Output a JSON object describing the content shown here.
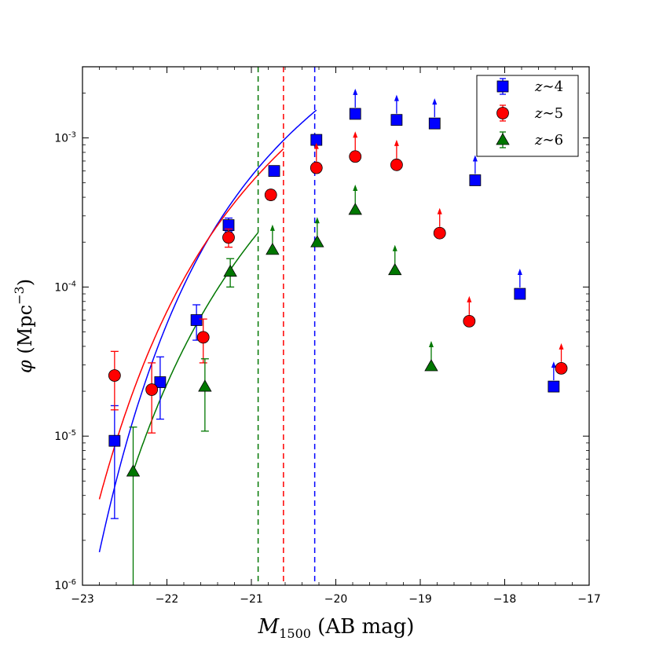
{
  "chart_data": {
    "type": "scatter",
    "xlabel_main": "M",
    "xlabel_sub": "1500",
    "xlabel_rest": " (AB mag)",
    "ylabel_sym": "φ",
    "ylabel_text": "(Mpc",
    "ylabel_exp": "−3",
    "ylabel_close": ")",
    "xlim": [
      -23,
      -17
    ],
    "ylim": [
      1e-06,
      0.003
    ],
    "yscale": "log",
    "x_ticks": [
      -23,
      -22,
      -21,
      -20,
      -19,
      -18,
      -17
    ],
    "x_tick_labels": [
      "−23",
      "−22",
      "−21",
      "−20",
      "−19",
      "−18",
      "−17"
    ],
    "y_ticks": [
      1e-06,
      1e-05,
      0.0001,
      0.001
    ],
    "y_tick_labels": [
      "10-6",
      "10-5",
      "10-4",
      "10-3"
    ],
    "legend_position": "top-right",
    "series": [
      {
        "name": "z ∼4",
        "legend_z": "z",
        "legend_tilde": "∼",
        "legend_num": "4",
        "color": "#0000ff",
        "marker": "square",
        "points": [
          {
            "x": -22.62,
            "y": 9.3e-06,
            "lo": 2.8e-06,
            "hi": 1.6e-05
          },
          {
            "x": -22.08,
            "y": 2.3e-05,
            "lo": 1.3e-05,
            "hi": 3.4e-05
          },
          {
            "x": -21.65,
            "y": 6e-05,
            "lo": 4.4e-05,
            "hi": 7.6e-05
          },
          {
            "x": -21.27,
            "y": 0.00026,
            "lo": 0.000235,
            "hi": 0.00029
          },
          {
            "x": -20.73,
            "y": 0.0006,
            "lo": 0.00057,
            "hi": 0.00063
          },
          {
            "x": -20.23,
            "y": 0.00097,
            "lo": 0.00094,
            "hi": 0.001
          }
        ],
        "lower_limits": [
          {
            "x": -19.77,
            "y": 0.00145
          },
          {
            "x": -19.28,
            "y": 0.00132
          },
          {
            "x": -18.83,
            "y": 0.00125
          },
          {
            "x": -18.35,
            "y": 0.00052
          },
          {
            "x": -17.82,
            "y": 9e-05
          },
          {
            "x": -17.42,
            "y": 2.15e-05
          }
        ],
        "fit": {
          "phi_star": 0.00197,
          "m_star": -20.88,
          "alpha": -1.64,
          "x_min": -22.8,
          "x_max": -20.23
        },
        "limit_x": -20.25
      },
      {
        "name": "z ∼5",
        "legend_z": "z",
        "legend_tilde": "∼",
        "legend_num": "5",
        "color": "#ff0000",
        "marker": "circle",
        "points": [
          {
            "x": -22.62,
            "y": 2.55e-05,
            "lo": 1.5e-05,
            "hi": 3.7e-05
          },
          {
            "x": -22.18,
            "y": 2.05e-05,
            "lo": 1.05e-05,
            "hi": 3.1e-05
          },
          {
            "x": -21.57,
            "y": 4.6e-05,
            "lo": 3.1e-05,
            "hi": 6.1e-05
          },
          {
            "x": -21.27,
            "y": 0.000215,
            "lo": 0.000185,
            "hi": 0.000245
          },
          {
            "x": -20.77,
            "y": 0.000415,
            "lo": 0.000385,
            "hi": 0.000445
          }
        ],
        "lower_limits": [
          {
            "x": -20.23,
            "y": 0.00063
          },
          {
            "x": -19.77,
            "y": 0.00075
          },
          {
            "x": -19.28,
            "y": 0.00066
          },
          {
            "x": -18.77,
            "y": 0.00023
          },
          {
            "x": -18.42,
            "y": 5.9e-05
          },
          {
            "x": -17.33,
            "y": 2.85e-05
          }
        ],
        "fit": {
          "phi_star": 0.00114,
          "m_star": -21.17,
          "alpha": -1.76,
          "x_min": -22.8,
          "x_max": -20.62
        },
        "limit_x": -20.62
      },
      {
        "name": "z ∼6",
        "legend_z": "z",
        "legend_tilde": "∼",
        "legend_num": "6",
        "color": "#007700",
        "marker": "triangle",
        "points": [
          {
            "x": -22.4,
            "y": 5.8e-06,
            "lo": 1e-06,
            "hi": 1.15e-05
          },
          {
            "x": -21.55,
            "y": 2.15e-05,
            "lo": 1.08e-05,
            "hi": 3.3e-05
          },
          {
            "x": -21.25,
            "y": 0.000127,
            "lo": 0.0001,
            "hi": 0.000155
          }
        ],
        "lower_limits": [
          {
            "x": -20.75,
            "y": 0.000178
          },
          {
            "x": -20.22,
            "y": 0.0002
          },
          {
            "x": -19.77,
            "y": 0.00033
          },
          {
            "x": -19.3,
            "y": 0.00013
          },
          {
            "x": -18.87,
            "y": 2.95e-05
          }
        ],
        "fit": {
          "phi_star": 0.000506,
          "m_star": -21.1,
          "alpha": -1.9,
          "x_min": -22.4,
          "x_max": -20.92
        },
        "limit_x": -20.92
      }
    ]
  }
}
